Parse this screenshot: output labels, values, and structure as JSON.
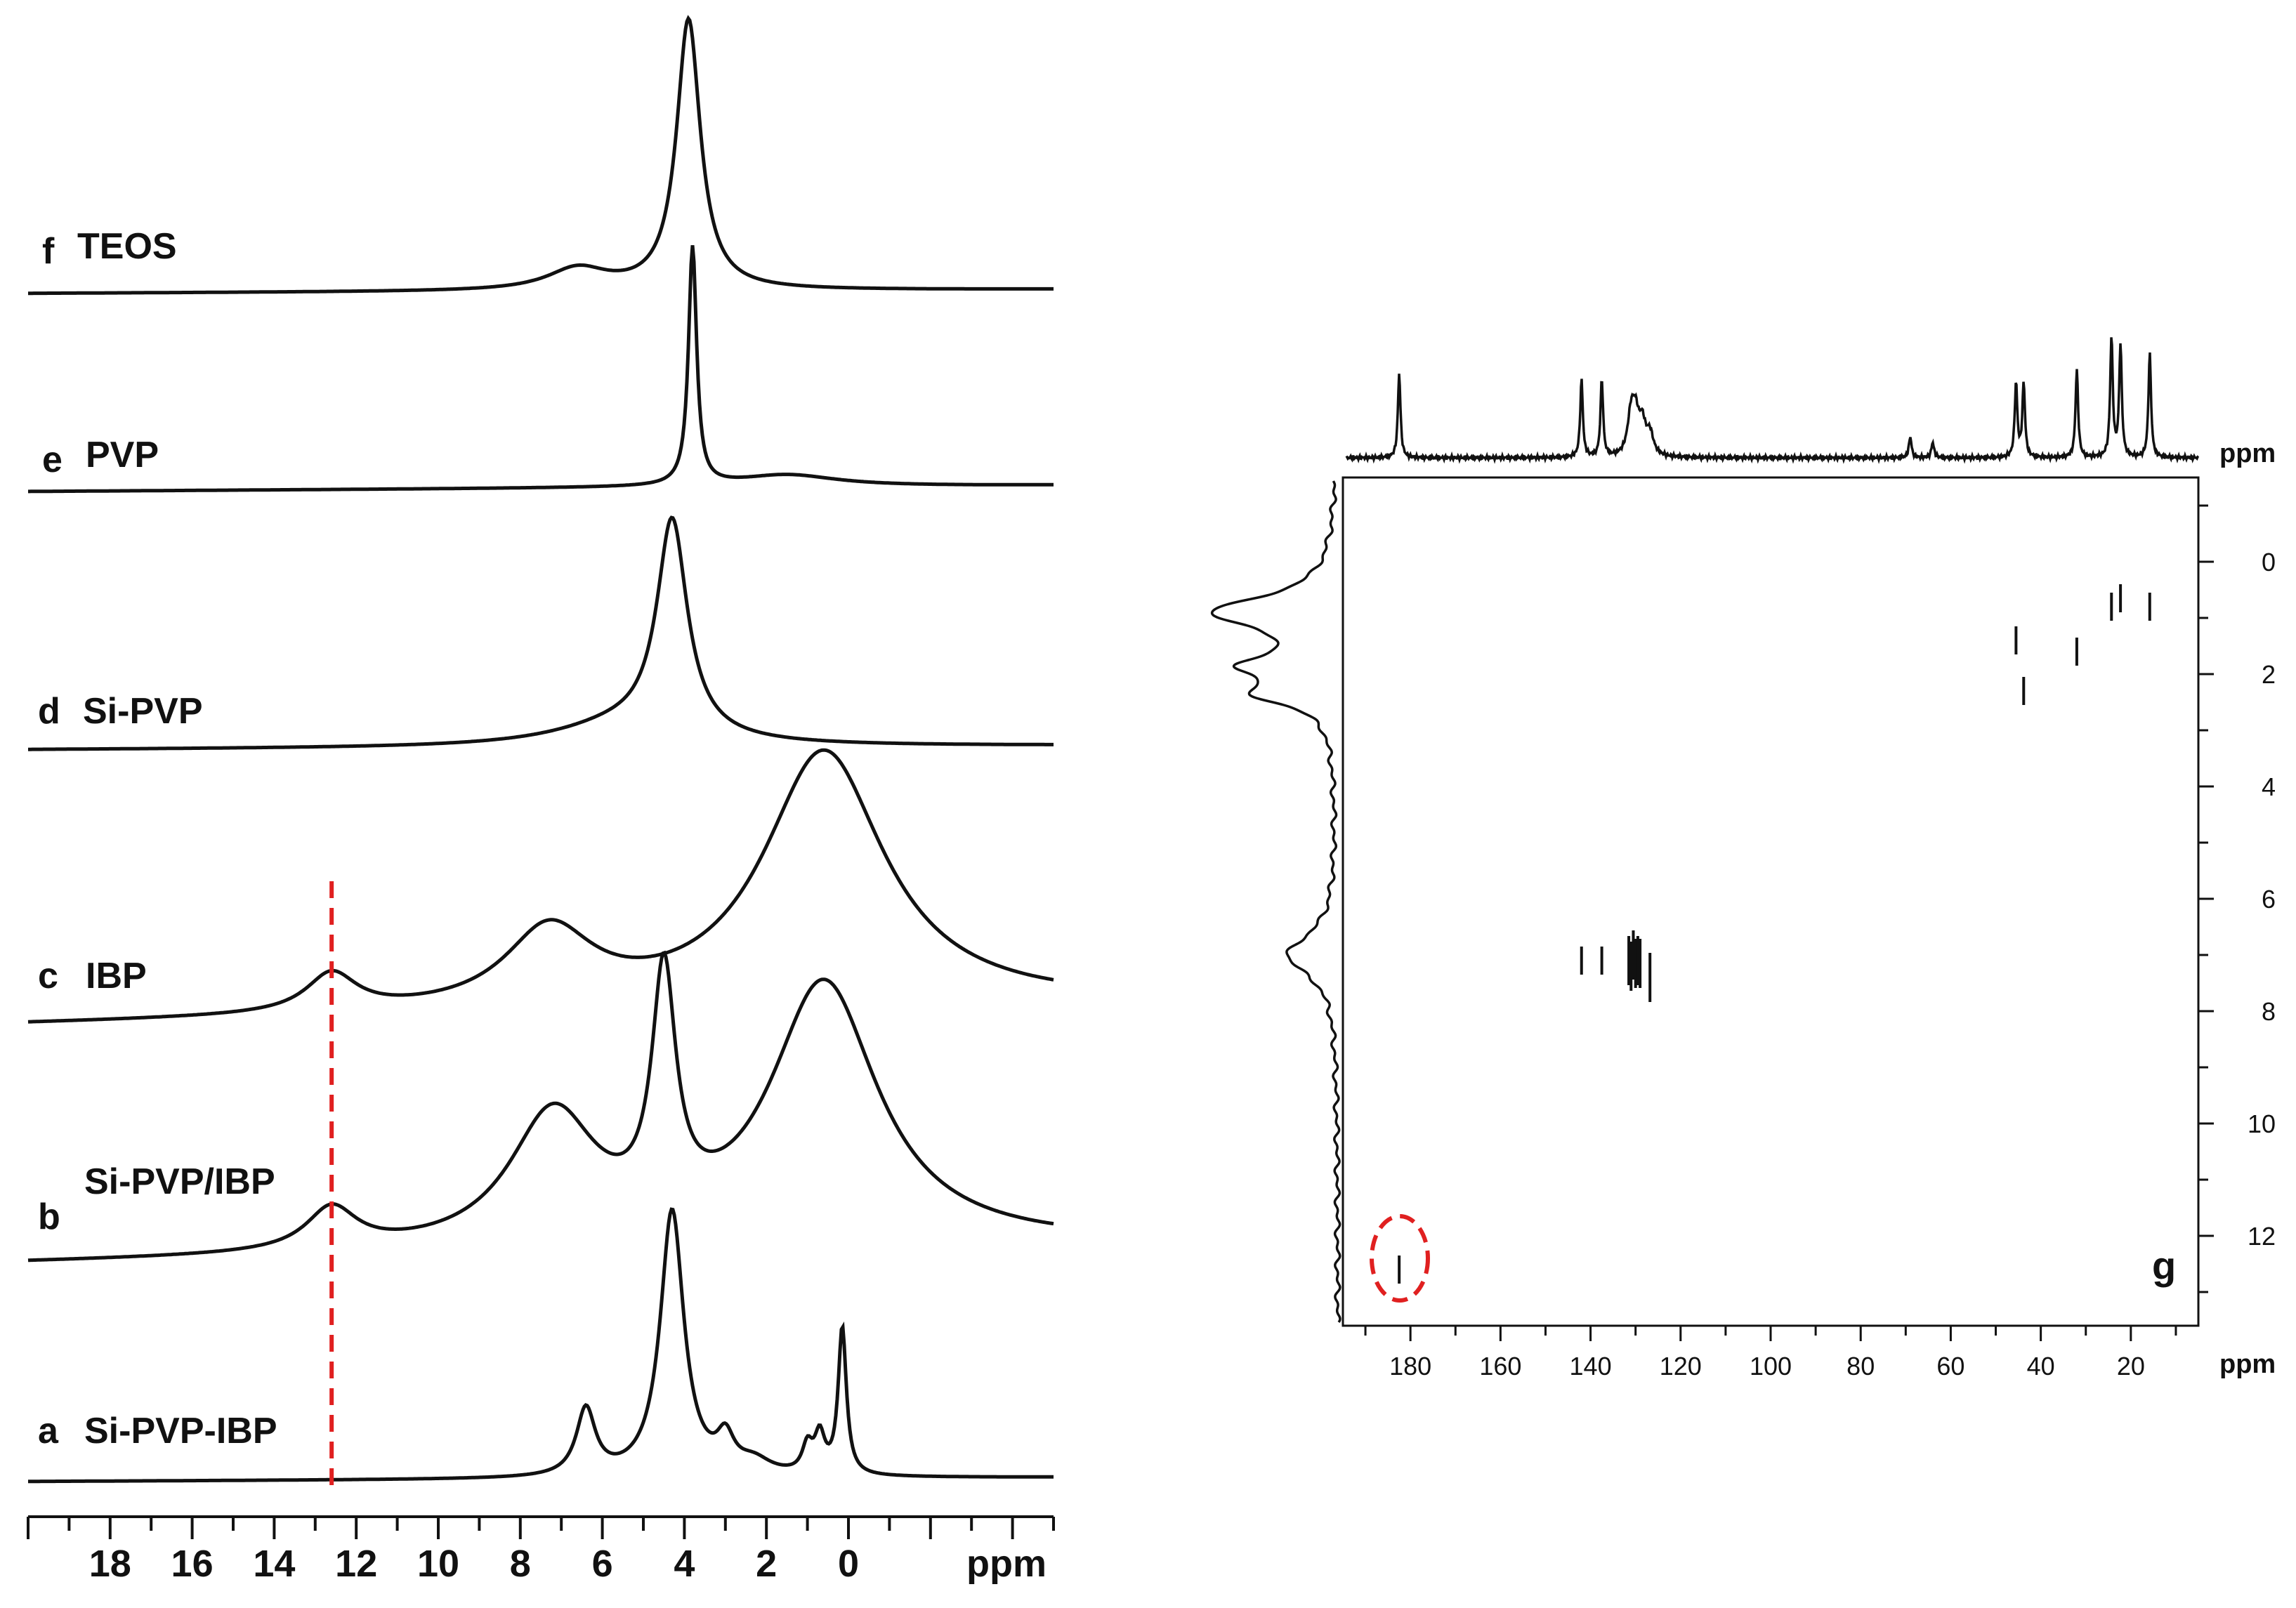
{
  "chart_data": [
    {
      "type": "line",
      "panel": "1H NMR stacked spectra",
      "xlabel": "ppm",
      "x_ticks": [
        18,
        16,
        14,
        12,
        10,
        8,
        6,
        4,
        2,
        0
      ],
      "xlim": [
        20,
        -5
      ],
      "series": [
        {
          "letter": "f",
          "name": "TEOS",
          "peaks": [
            {
              "ppm": 3.9,
              "height": 1.0,
              "width": 0.35
            },
            {
              "ppm": 6.6,
              "height": 0.08,
              "width": 0.9
            }
          ]
        },
        {
          "letter": "e",
          "name": "PVP",
          "peaks": [
            {
              "ppm": 3.8,
              "height": 1.0,
              "width": 0.12
            },
            {
              "ppm": 1.5,
              "height": 0.05,
              "width": 1.5
            }
          ]
        },
        {
          "letter": "d",
          "name": "Si-PVP",
          "peaks": [
            {
              "ppm": 4.3,
              "height": 1.0,
              "width": 0.45
            },
            {
              "ppm": 5.5,
              "height": 0.1,
              "width": 2.0
            }
          ]
        },
        {
          "letter": "c",
          "name": "IBP",
          "peaks": [
            {
              "ppm": 12.6,
              "height": 0.15,
              "width": 0.75
            },
            {
              "ppm": 7.3,
              "height": 0.3,
              "width": 1.3
            },
            {
              "ppm": 0.6,
              "height": 1.0,
              "width": 1.8
            }
          ]
        },
        {
          "letter": "b",
          "name": "Si-PVP/IBP",
          "peaks": [
            {
              "ppm": 12.6,
              "height": 0.16,
              "width": 0.75
            },
            {
              "ppm": 7.2,
              "height": 0.5,
              "width": 1.3
            },
            {
              "ppm": 4.5,
              "height": 0.9,
              "width": 0.35
            },
            {
              "ppm": 0.6,
              "height": 1.0,
              "width": 1.6
            }
          ]
        },
        {
          "letter": "a",
          "name": "Si-PVP-IBP",
          "peaks": [
            {
              "ppm": 4.3,
              "height": 1.0,
              "width": 0.35
            },
            {
              "ppm": 6.4,
              "height": 0.25,
              "width": 0.28
            },
            {
              "ppm": 3.0,
              "height": 0.12,
              "width": 0.25
            },
            {
              "ppm": 1.0,
              "height": 0.1,
              "width": 0.15
            },
            {
              "ppm": 0.7,
              "height": 0.14,
              "width": 0.15
            },
            {
              "ppm": 0.15,
              "height": 0.55,
              "width": 0.12
            },
            {
              "ppm": 2.3,
              "height": 0.05,
              "width": 0.5
            }
          ]
        }
      ],
      "annotation_line_ppm": 12.6
    },
    {
      "type": "scatter",
      "panel": "2D correlation spectrum",
      "letter": "g",
      "xlabel": "ppm",
      "ylabel": "ppm",
      "xlim": [
        195,
        5
      ],
      "ylim": [
        -1.5,
        13.6
      ],
      "x_ticks": [
        180,
        160,
        140,
        120,
        100,
        80,
        60,
        40,
        20
      ],
      "y_ticks": [
        0,
        2,
        4,
        6,
        8,
        10,
        12
      ],
      "cross_peaks": [
        {
          "x": 182.5,
          "y": 12.6
        },
        {
          "x": 142,
          "y": 7.1
        },
        {
          "x": 137.5,
          "y": 7.1
        },
        {
          "x": 131.5,
          "y": 7.1
        },
        {
          "x": 131,
          "y": 7.2
        },
        {
          "x": 130.5,
          "y": 7.0
        },
        {
          "x": 130,
          "y": 7.15
        },
        {
          "x": 129.5,
          "y": 7.1
        },
        {
          "x": 129,
          "y": 7.15
        },
        {
          "x": 126.8,
          "y": 7.4
        },
        {
          "x": 45.5,
          "y": 1.4
        },
        {
          "x": 43.8,
          "y": 2.3
        },
        {
          "x": 32.0,
          "y": 1.6
        },
        {
          "x": 24.3,
          "y": 0.8
        },
        {
          "x": 22.3,
          "y": 0.65
        },
        {
          "x": 15.8,
          "y": 0.8
        }
      ],
      "top_projection_peaks": [
        182.5,
        142,
        137.5,
        131,
        130,
        128.5,
        126.8,
        69,
        64,
        45.5,
        43.8,
        32.0,
        24.3,
        22.3,
        15.8
      ],
      "left_projection_peaks": [
        0.9,
        1.85,
        2.35,
        7.0
      ]
    }
  ],
  "colors": {
    "line": "#111111",
    "annotation": "#e02020"
  }
}
